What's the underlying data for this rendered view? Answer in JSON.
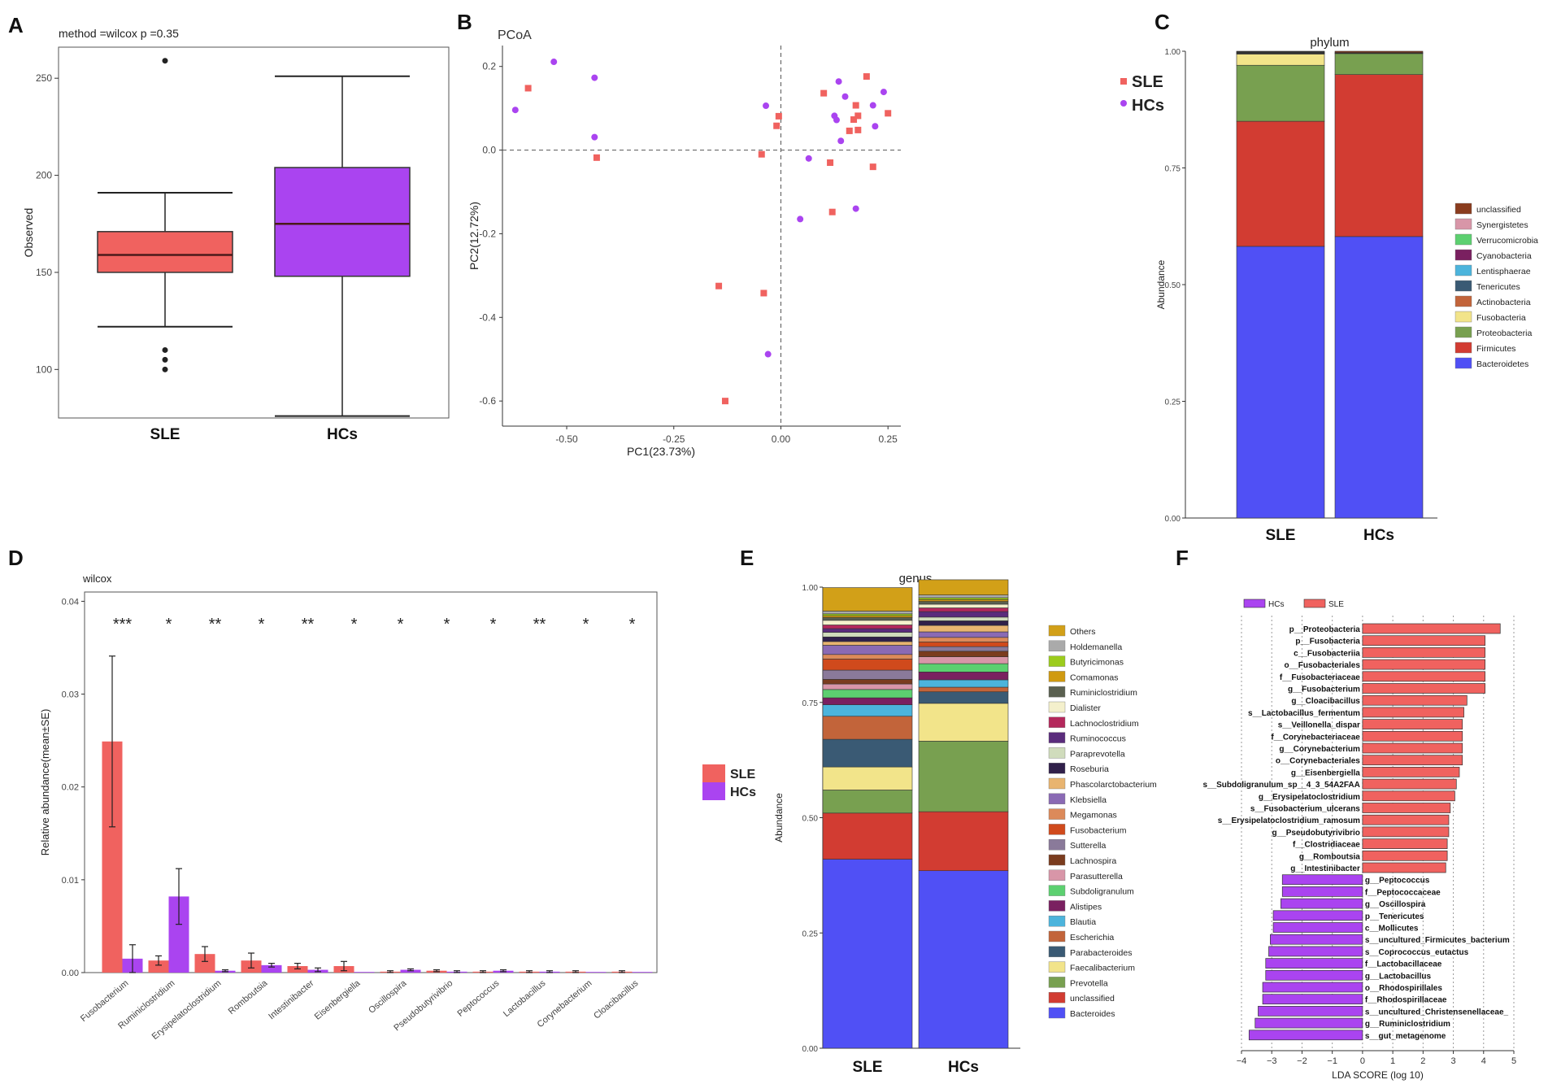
{
  "colors": {
    "sle": "#f0625f",
    "hcs": "#aa44f0",
    "sle_border": "#4a2a2a",
    "hcs_border": "#5a2a6a",
    "axis": "#333333",
    "text": "#222222"
  },
  "chart_data": [
    {
      "panel": "A",
      "type": "boxplot",
      "title": "method =wilcox p =0.35",
      "ylabel": "Observed",
      "ylim": [
        75,
        266
      ],
      "yticks": [
        100,
        150,
        200,
        250
      ],
      "categories": [
        "SLE",
        "HCs"
      ],
      "boxes": [
        {
          "name": "SLE",
          "min": 122,
          "q1": 150,
          "median": 159,
          "q3": 171,
          "max": 191,
          "outliers": [
            259,
            110,
            105,
            100
          ]
        },
        {
          "name": "HCs",
          "min": 76,
          "q1": 148,
          "median": 175,
          "q3": 204,
          "max": 251,
          "outliers": []
        }
      ]
    },
    {
      "panel": "B",
      "type": "scatter",
      "title": "PCoA",
      "xlabel": "PC1(23.73%)",
      "ylabel": "PC2(12.72%)",
      "xlim": [
        -0.65,
        0.28
      ],
      "ylim": [
        -0.66,
        0.25
      ],
      "xticks": [
        -0.5,
        -0.25,
        0.0,
        0.25
      ],
      "xtick_labels": [
        "-0.50",
        "-0.25",
        "0.00",
        "0.25"
      ],
      "yticks": [
        0.2,
        0.0,
        -0.2,
        -0.4,
        -0.6
      ],
      "ytick_labels": [
        "0.2",
        "0.0",
        "-0.2",
        "-0.4",
        "-0.6"
      ],
      "series": [
        {
          "name": "SLE",
          "marker": "square",
          "points": [
            [
              -0.59,
              0.148
            ],
            [
              -0.43,
              -0.018
            ],
            [
              -0.045,
              -0.01
            ],
            [
              -0.145,
              -0.325
            ],
            [
              -0.04,
              -0.342
            ],
            [
              -0.13,
              -0.6
            ],
            [
              -0.01,
              0.058
            ],
            [
              -0.005,
              0.081
            ],
            [
              0.1,
              0.136
            ],
            [
              0.115,
              -0.03
            ],
            [
              0.12,
              -0.148
            ],
            [
              0.16,
              0.046
            ],
            [
              0.17,
              0.073
            ],
            [
              0.175,
              0.107
            ],
            [
              0.18,
              0.082
            ],
            [
              0.18,
              0.048
            ],
            [
              0.2,
              0.176
            ],
            [
              0.215,
              -0.04
            ],
            [
              0.25,
              0.088
            ]
          ]
        },
        {
          "name": "HCs",
          "marker": "circle",
          "points": [
            [
              -0.62,
              0.096
            ],
            [
              -0.53,
              0.211
            ],
            [
              -0.435,
              0.173
            ],
            [
              -0.435,
              0.031
            ],
            [
              -0.035,
              0.106
            ],
            [
              -0.03,
              -0.488
            ],
            [
              0.045,
              -0.165
            ],
            [
              0.065,
              -0.02
            ],
            [
              0.125,
              0.082
            ],
            [
              0.13,
              0.072
            ],
            [
              0.135,
              0.164
            ],
            [
              0.14,
              0.022
            ],
            [
              0.15,
              0.128
            ],
            [
              0.175,
              -0.14
            ],
            [
              0.215,
              0.107
            ],
            [
              0.22,
              0.057
            ],
            [
              0.24,
              0.139
            ]
          ]
        }
      ],
      "legend": [
        "SLE",
        "HCs"
      ],
      "legend_position": "top-right"
    },
    {
      "panel": "C",
      "type": "stacked-bar",
      "title": "phylum",
      "ylabel": "Abundance",
      "categories": [
        "SLE",
        "HCs"
      ],
      "ylim": [
        0,
        1
      ],
      "ytick_labels": [
        "0.00",
        "0.25",
        "0.50",
        "0.75",
        "1.00"
      ],
      "series": [
        {
          "name": "Bacteroidetes",
          "color": "#5050f5",
          "values": [
            0.582,
            0.603
          ]
        },
        {
          "name": "Firmicutes",
          "color": "#d23c32",
          "values": [
            0.268,
            0.347
          ]
        },
        {
          "name": "Proteobacteria",
          "color": "#78a050",
          "values": [
            0.12,
            0.045
          ]
        },
        {
          "name": "Fusobacteria",
          "color": "#f2e48a",
          "values": [
            0.024,
            0.0
          ]
        },
        {
          "name": "Actinobacteria",
          "color": "#c2643a",
          "values": [
            0.001,
            0.001
          ]
        },
        {
          "name": "Tenericutes",
          "color": "#3a5a74",
          "values": [
            0.001,
            0.001
          ]
        },
        {
          "name": "Lentisphaerae",
          "color": "#4cb4dc",
          "values": [
            0.001,
            0.0
          ]
        },
        {
          "name": "Cyanobacteria",
          "color": "#7a2060",
          "values": [
            0.001,
            0.0
          ]
        },
        {
          "name": "Verrucomicrobia",
          "color": "#5cd070",
          "values": [
            0.001,
            0.0
          ]
        },
        {
          "name": "Synergistetes",
          "color": "#d896a8",
          "values": [
            0.0,
            0.0
          ]
        },
        {
          "name": "unclassified",
          "color": "#8a3c1e",
          "values": [
            0.001,
            0.003
          ]
        }
      ],
      "legend_order": [
        "unclassified",
        "Synergistetes",
        "Verrucomicrobia",
        "Cyanobacteria",
        "Lentisphaerae",
        "Tenericutes",
        "Actinobacteria",
        "Fusobacteria",
        "Proteobacteria",
        "Firmicutes",
        "Bacteroidetes"
      ]
    },
    {
      "panel": "D",
      "type": "bar",
      "title": "wilcox",
      "ylabel": "Relative abundance(mean±SE)",
      "ylim": [
        0,
        0.041
      ],
      "yticks": [
        0,
        0.01,
        0.02,
        0.03,
        0.04
      ],
      "ytick_labels": [
        "0.00",
        "0.01",
        "0.02",
        "0.03",
        "0.04"
      ],
      "categories": [
        "Fusobacterium",
        "Ruminiclostridium",
        "Erysipelatoclostridium",
        "Romboutsia",
        "Intestinibacter",
        "Eisenbergiella",
        "Oscillospira",
        "Pseudobutyrivibrio",
        "Peptococcus",
        "Lactobacillus",
        "Corynebacterium",
        "Cloacibacillus"
      ],
      "significance": [
        "***",
        "*",
        "**",
        "*",
        "**",
        "*",
        "*",
        "*",
        "*",
        "**",
        "*",
        "*"
      ],
      "series": [
        {
          "name": "SLE",
          "values": [
            0.0249,
            0.0013,
            0.002,
            0.0013,
            0.0007,
            0.0007,
            0.0001,
            0.0002,
            0.0001,
            0.0001,
            0.0001,
            0.0001
          ],
          "errors": [
            0.0092,
            0.0005,
            0.0008,
            0.0008,
            0.0003,
            0.0005,
            0.0001,
            0.0001,
            0.0001,
            0.0001,
            0.0001,
            0.0001
          ]
        },
        {
          "name": "HCs",
          "values": [
            0.0015,
            0.0082,
            0.0002,
            0.0008,
            0.0003,
            0.0,
            0.0003,
            0.0001,
            0.0002,
            0.0001,
            0.0,
            0.0
          ],
          "errors": [
            0.0015,
            0.003,
            0.0001,
            0.0002,
            0.0002,
            0.0,
            0.0001,
            0.0001,
            0.0001,
            0.0001,
            0.0,
            0.0
          ]
        }
      ],
      "legend": [
        "SLE",
        "HCs"
      ]
    },
    {
      "panel": "E",
      "type": "stacked-bar",
      "title": "genus",
      "ylabel": "Abundance",
      "categories": [
        "SLE",
        "HCs"
      ],
      "ylim": [
        0,
        1
      ],
      "ytick_labels": [
        "0.00",
        "0.25",
        "0.50",
        "0.75",
        "1.00"
      ],
      "series": [
        {
          "name": "Bacteroides",
          "color": "#5050f5",
          "values": [
            0.41,
            0.385
          ]
        },
        {
          "name": "unclassified",
          "color": "#d23c32",
          "values": [
            0.1,
            0.128
          ]
        },
        {
          "name": "Prevotella",
          "color": "#78a050",
          "values": [
            0.05,
            0.153
          ]
        },
        {
          "name": "Faecalibacterium",
          "color": "#f2e48a",
          "values": [
            0.05,
            0.082
          ]
        },
        {
          "name": "Parabacteroides",
          "color": "#3a5a74",
          "values": [
            0.06,
            0.025
          ]
        },
        {
          "name": "Escherichia",
          "color": "#c2643a",
          "values": [
            0.05,
            0.01
          ]
        },
        {
          "name": "Blautia",
          "color": "#4cb4dc",
          "values": [
            0.025,
            0.016
          ]
        },
        {
          "name": "Alistipes",
          "color": "#7a2060",
          "values": [
            0.015,
            0.017
          ]
        },
        {
          "name": "Subdoligranulum",
          "color": "#5cd070",
          "values": [
            0.018,
            0.018
          ]
        },
        {
          "name": "Parasutterella",
          "color": "#d896a8",
          "values": [
            0.012,
            0.015
          ]
        },
        {
          "name": "Lachnospira",
          "color": "#7a3c1e",
          "values": [
            0.01,
            0.012
          ]
        },
        {
          "name": "Sutterella",
          "color": "#8a7a9a",
          "values": [
            0.02,
            0.01
          ]
        },
        {
          "name": "Fusobacterium",
          "color": "#d04a1c",
          "values": [
            0.024,
            0.01
          ]
        },
        {
          "name": "Megamonas",
          "color": "#dc8a5a",
          "values": [
            0.01,
            0.01
          ]
        },
        {
          "name": "Klebsiella",
          "color": "#8a6ab4",
          "values": [
            0.02,
            0.012
          ]
        },
        {
          "name": "Phascolarctobacterium",
          "color": "#e8b470",
          "values": [
            0.008,
            0.014
          ]
        },
        {
          "name": "Roseburia",
          "color": "#30204a",
          "values": [
            0.01,
            0.01
          ]
        },
        {
          "name": "Paraprevotella",
          "color": "#d0dcbc",
          "values": [
            0.01,
            0.008
          ]
        },
        {
          "name": "Ruminococcus",
          "color": "#5a2c7c",
          "values": [
            0.008,
            0.012
          ]
        },
        {
          "name": "Lachnoclostridium",
          "color": "#b4285c",
          "values": [
            0.008,
            0.008
          ]
        },
        {
          "name": "Dialister",
          "color": "#f4f0cc",
          "values": [
            0.01,
            0.008
          ]
        },
        {
          "name": "Ruminiclostridium",
          "color": "#5a6050",
          "values": [
            0.006,
            0.006
          ]
        },
        {
          "name": "Comamonas",
          "color": "#d09a10",
          "values": [
            0.004,
            0.004
          ]
        },
        {
          "name": "Butyricimonas",
          "color": "#9ccc1c",
          "values": [
            0.004,
            0.004
          ]
        },
        {
          "name": "Holdemanella",
          "color": "#aaaaaa",
          "values": [
            0.006,
            0.006
          ]
        },
        {
          "name": "Others",
          "color": "#d2a018",
          "values": [
            0.051,
            0.033
          ]
        }
      ],
      "legend_order": [
        "Others",
        "Holdemanella",
        "Butyricimonas",
        "Comamonas",
        "Ruminiclostridium",
        "Dialister",
        "Lachnoclostridium",
        "Ruminococcus",
        "Paraprevotella",
        "Roseburia",
        "Phascolarctobacterium",
        "Klebsiella",
        "Megamonas",
        "Fusobacterium",
        "Sutterella",
        "Lachnospira",
        "Parasutterella",
        "Subdoligranulum",
        "Alistipes",
        "Blautia",
        "Escherichia",
        "Parabacteroides",
        "Faecalibacterium",
        "Prevotella",
        "unclassified",
        "Bacteroides"
      ]
    },
    {
      "panel": "F",
      "type": "horizontal-bar",
      "xlabel": "LDA SCORE (log 10)",
      "xlim": [
        -4,
        5
      ],
      "xticks": [
        -4,
        -3,
        -2,
        -1,
        0,
        1,
        2,
        3,
        4,
        5
      ],
      "xtick_labels": [
        "−4",
        "−3",
        "−2",
        "−1",
        "0",
        "1",
        "2",
        "3",
        "4",
        "5"
      ],
      "legend": [
        "HCs",
        "SLE"
      ],
      "bars": [
        {
          "label": "p__Proteobacteria",
          "group": "SLE",
          "value": 4.55
        },
        {
          "label": "p__Fusobacteria",
          "group": "SLE",
          "value": 4.05
        },
        {
          "label": "c__Fusobacteriia",
          "group": "SLE",
          "value": 4.05
        },
        {
          "label": "o__Fusobacteriales",
          "group": "SLE",
          "value": 4.05
        },
        {
          "label": "f__Fusobacteriaceae",
          "group": "SLE",
          "value": 4.05
        },
        {
          "label": "g__Fusobacterium",
          "group": "SLE",
          "value": 4.05
        },
        {
          "label": "g__Cloacibacillus",
          "group": "SLE",
          "value": 3.45
        },
        {
          "label": "s__Lactobacillus_fermentum",
          "group": "SLE",
          "value": 3.35
        },
        {
          "label": "s__Veillonella_dispar",
          "group": "SLE",
          "value": 3.3
        },
        {
          "label": "f__Corynebacteriaceae",
          "group": "SLE",
          "value": 3.3
        },
        {
          "label": "g__Corynebacterium",
          "group": "SLE",
          "value": 3.3
        },
        {
          "label": "o__Corynebacteriales",
          "group": "SLE",
          "value": 3.3
        },
        {
          "label": "g__Eisenbergiella",
          "group": "SLE",
          "value": 3.2
        },
        {
          "label": "s__Subdoligranulum_sp__4_3_54A2FAA",
          "group": "SLE",
          "value": 3.1
        },
        {
          "label": "g__Erysipelatoclostridium",
          "group": "SLE",
          "value": 3.05
        },
        {
          "label": "s__Fusobacterium_ulcerans",
          "group": "SLE",
          "value": 2.9
        },
        {
          "label": "s__Erysipelatoclostridium_ramosum",
          "group": "SLE",
          "value": 2.85
        },
        {
          "label": "g__Pseudobutyrivibrio",
          "group": "SLE",
          "value": 2.85
        },
        {
          "label": "f__Clostridiaceae",
          "group": "SLE",
          "value": 2.8
        },
        {
          "label": "g__Romboutsia",
          "group": "SLE",
          "value": 2.8
        },
        {
          "label": "g__Intestinibacter",
          "group": "SLE",
          "value": 2.75
        },
        {
          "label": "g__Peptococcus",
          "group": "HCs",
          "value": -2.65
        },
        {
          "label": "f__Peptococcaceae",
          "group": "HCs",
          "value": -2.65
        },
        {
          "label": "g__Oscillospira",
          "group": "HCs",
          "value": -2.7
        },
        {
          "label": "p__Tenericutes",
          "group": "HCs",
          "value": -2.95
        },
        {
          "label": "c__Mollicutes",
          "group": "HCs",
          "value": -2.95
        },
        {
          "label": "s__uncultured_Firmicutes_bacterium",
          "group": "HCs",
          "value": -3.05
        },
        {
          "label": "s__Coprococcus_eutactus",
          "group": "HCs",
          "value": -3.1
        },
        {
          "label": "f__Lactobacillaceae",
          "group": "HCs",
          "value": -3.2
        },
        {
          "label": "g__Lactobacillus",
          "group": "HCs",
          "value": -3.2
        },
        {
          "label": "o__Rhodospirillales",
          "group": "HCs",
          "value": -3.3
        },
        {
          "label": "f__Rhodospirillaceae",
          "group": "HCs",
          "value": -3.3
        },
        {
          "label": "s__uncultured_Christensenellaceae_",
          "group": "HCs",
          "value": -3.45
        },
        {
          "label": "g__Ruminiclostridium",
          "group": "HCs",
          "value": -3.55
        },
        {
          "label": "s__gut_metagenome",
          "group": "HCs",
          "value": -3.75
        }
      ]
    }
  ]
}
